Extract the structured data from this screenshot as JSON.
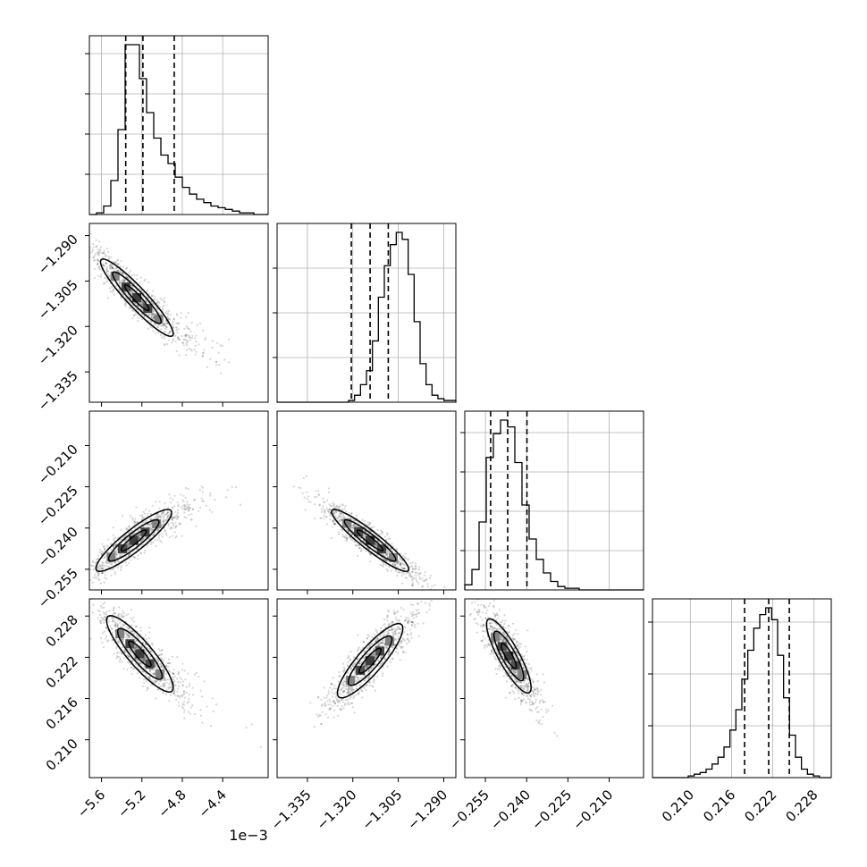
{
  "chart_data": {
    "type": "corner",
    "offset_text": "1e−3",
    "parameters": [
      {
        "name": "",
        "range": [
          -5.72,
          -3.95
        ],
        "ticks": [
          "−5.6",
          "−5.2",
          "−4.8",
          "−4.4"
        ],
        "tick_values": [
          -5.6,
          -5.2,
          -4.8,
          -4.4
        ]
      },
      {
        "name": "",
        "range": [
          -1.345,
          -1.286
        ],
        "ticks": [
          "−1.335",
          "−1.320",
          "−1.305",
          "−1.290"
        ],
        "tick_values": [
          -1.335,
          -1.32,
          -1.305,
          -1.29
        ]
      },
      {
        "name": "",
        "range": [
          -0.2625,
          -0.1975
        ],
        "ticks": [
          "−0.255",
          "−0.240",
          "−0.225",
          "−0.210"
        ],
        "tick_values": [
          -0.255,
          -0.24,
          -0.225,
          -0.21
        ]
      },
      {
        "name": "",
        "range": [
          0.2045,
          0.2305
        ],
        "ticks": [
          "0.210",
          "0.216",
          "0.222",
          "0.228"
        ],
        "tick_values": [
          0.21,
          0.216,
          0.222,
          0.228
        ]
      }
    ],
    "histograms": [
      {
        "edges": [
          -5.72,
          -3.95
        ],
        "counts": [
          0,
          1,
          5,
          20,
          50,
          100,
          100,
          80,
          60,
          45,
          35,
          30,
          22,
          16,
          12,
          9,
          7,
          5,
          4,
          3,
          2,
          1,
          1,
          0,
          0
        ],
        "quantiles": [
          -5.36,
          -5.19,
          -4.88
        ]
      },
      {
        "edges": [
          -1.345,
          -1.286
        ],
        "counts": [
          0,
          0,
          0,
          0,
          0,
          0,
          0,
          0,
          0,
          0,
          0,
          0,
          1,
          4,
          10,
          18,
          35,
          60,
          78,
          90,
          97,
          93,
          73,
          46,
          22,
          10,
          4,
          2,
          1,
          1
        ],
        "quantiles": [
          -1.3205,
          -1.3143,
          -1.3083
        ]
      },
      {
        "edges": [
          -0.2625,
          -0.1975
        ],
        "counts": [
          3,
          12,
          40,
          78,
          92,
          100,
          96,
          75,
          50,
          30,
          18,
          10,
          5,
          2,
          1,
          1,
          0,
          0,
          0,
          0,
          0,
          0,
          0,
          0,
          0
        ],
        "quantiles": [
          -0.2531,
          -0.2469,
          -0.2399
        ]
      },
      {
        "edges": [
          0.2045,
          0.2305
        ],
        "counts": [
          0,
          0,
          0,
          0,
          0,
          0,
          1,
          2,
          3,
          5,
          8,
          12,
          18,
          28,
          40,
          58,
          75,
          88,
          96,
          100,
          93,
          72,
          47,
          25,
          12,
          5,
          2,
          1,
          0,
          0
        ],
        "quantiles": [
          0.2179,
          0.2214,
          0.2244
        ]
      }
    ],
    "pairs": [
      {
        "x": 0,
        "y": 1,
        "center": [
          -5.25,
          -1.3105
        ],
        "sd": [
          0.24,
          0.0085
        ],
        "rho": -0.93
      },
      {
        "x": 0,
        "y": 2,
        "center": [
          -5.28,
          -0.2445
        ],
        "sd": [
          0.25,
          0.0075
        ],
        "rho": 0.9
      },
      {
        "x": 1,
        "y": 2,
        "center": [
          -1.3143,
          -0.2445
        ],
        "sd": [
          0.0085,
          0.0075
        ],
        "rho": -0.93
      },
      {
        "x": 0,
        "y": 3,
        "center": [
          -5.22,
          0.2225
        ],
        "sd": [
          0.22,
          0.0037
        ],
        "rho": -0.88
      },
      {
        "x": 1,
        "y": 3,
        "center": [
          -1.3143,
          0.2215
        ],
        "sd": [
          0.0072,
          0.0036
        ],
        "rho": 0.87
      },
      {
        "x": 2,
        "y": 3,
        "center": [
          -0.2465,
          0.2222
        ],
        "sd": [
          0.0054,
          0.0036
        ],
        "rho": -0.85
      }
    ],
    "contour_levels": [
      0.5,
      1.0,
      1.5
    ],
    "grid": true
  }
}
